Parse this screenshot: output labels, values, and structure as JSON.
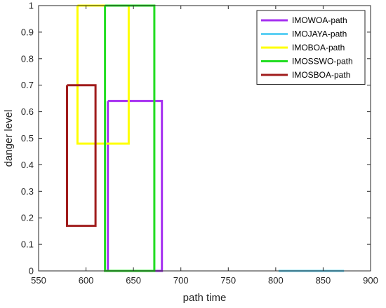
{
  "chart_data": {
    "type": "line",
    "xlabel": "path time",
    "ylabel": "danger level",
    "xlim": [
      550,
      900
    ],
    "ylim": [
      0,
      1
    ],
    "xticks": [
      550,
      600,
      650,
      700,
      750,
      800,
      850,
      900
    ],
    "yticks": [
      0,
      0.1,
      0.2,
      0.3,
      0.4,
      0.5,
      0.6,
      0.7,
      0.8,
      0.9,
      1
    ],
    "legend_position": "top-right",
    "grid": false,
    "series": [
      {
        "name": "IMOWOA-path",
        "color": "#a52ff0",
        "x": [
          623,
          680,
          680,
          623,
          623
        ],
        "y": [
          0.64,
          0.64,
          0,
          0,
          0.64
        ]
      },
      {
        "name": "IMOJAYA-path",
        "color": "#5fd0f4",
        "x": [
          803,
          872
        ],
        "y": [
          0,
          0
        ]
      },
      {
        "name": "IMOBOA-path",
        "color": "#ffff00",
        "x": [
          591,
          645,
          645,
          591,
          591
        ],
        "y": [
          1,
          1,
          0.48,
          0.48,
          1
        ]
      },
      {
        "name": "IMOSSWO-path",
        "color": "#22dd22",
        "x": [
          620,
          672,
          672,
          620,
          620
        ],
        "y": [
          1,
          1,
          0,
          0,
          1
        ]
      },
      {
        "name": "IMOSBOA-path",
        "color": "#a01c1c",
        "x": [
          580,
          610,
          610,
          580,
          580
        ],
        "y": [
          0.7,
          0.7,
          0.17,
          0.17,
          0.7
        ]
      }
    ]
  }
}
